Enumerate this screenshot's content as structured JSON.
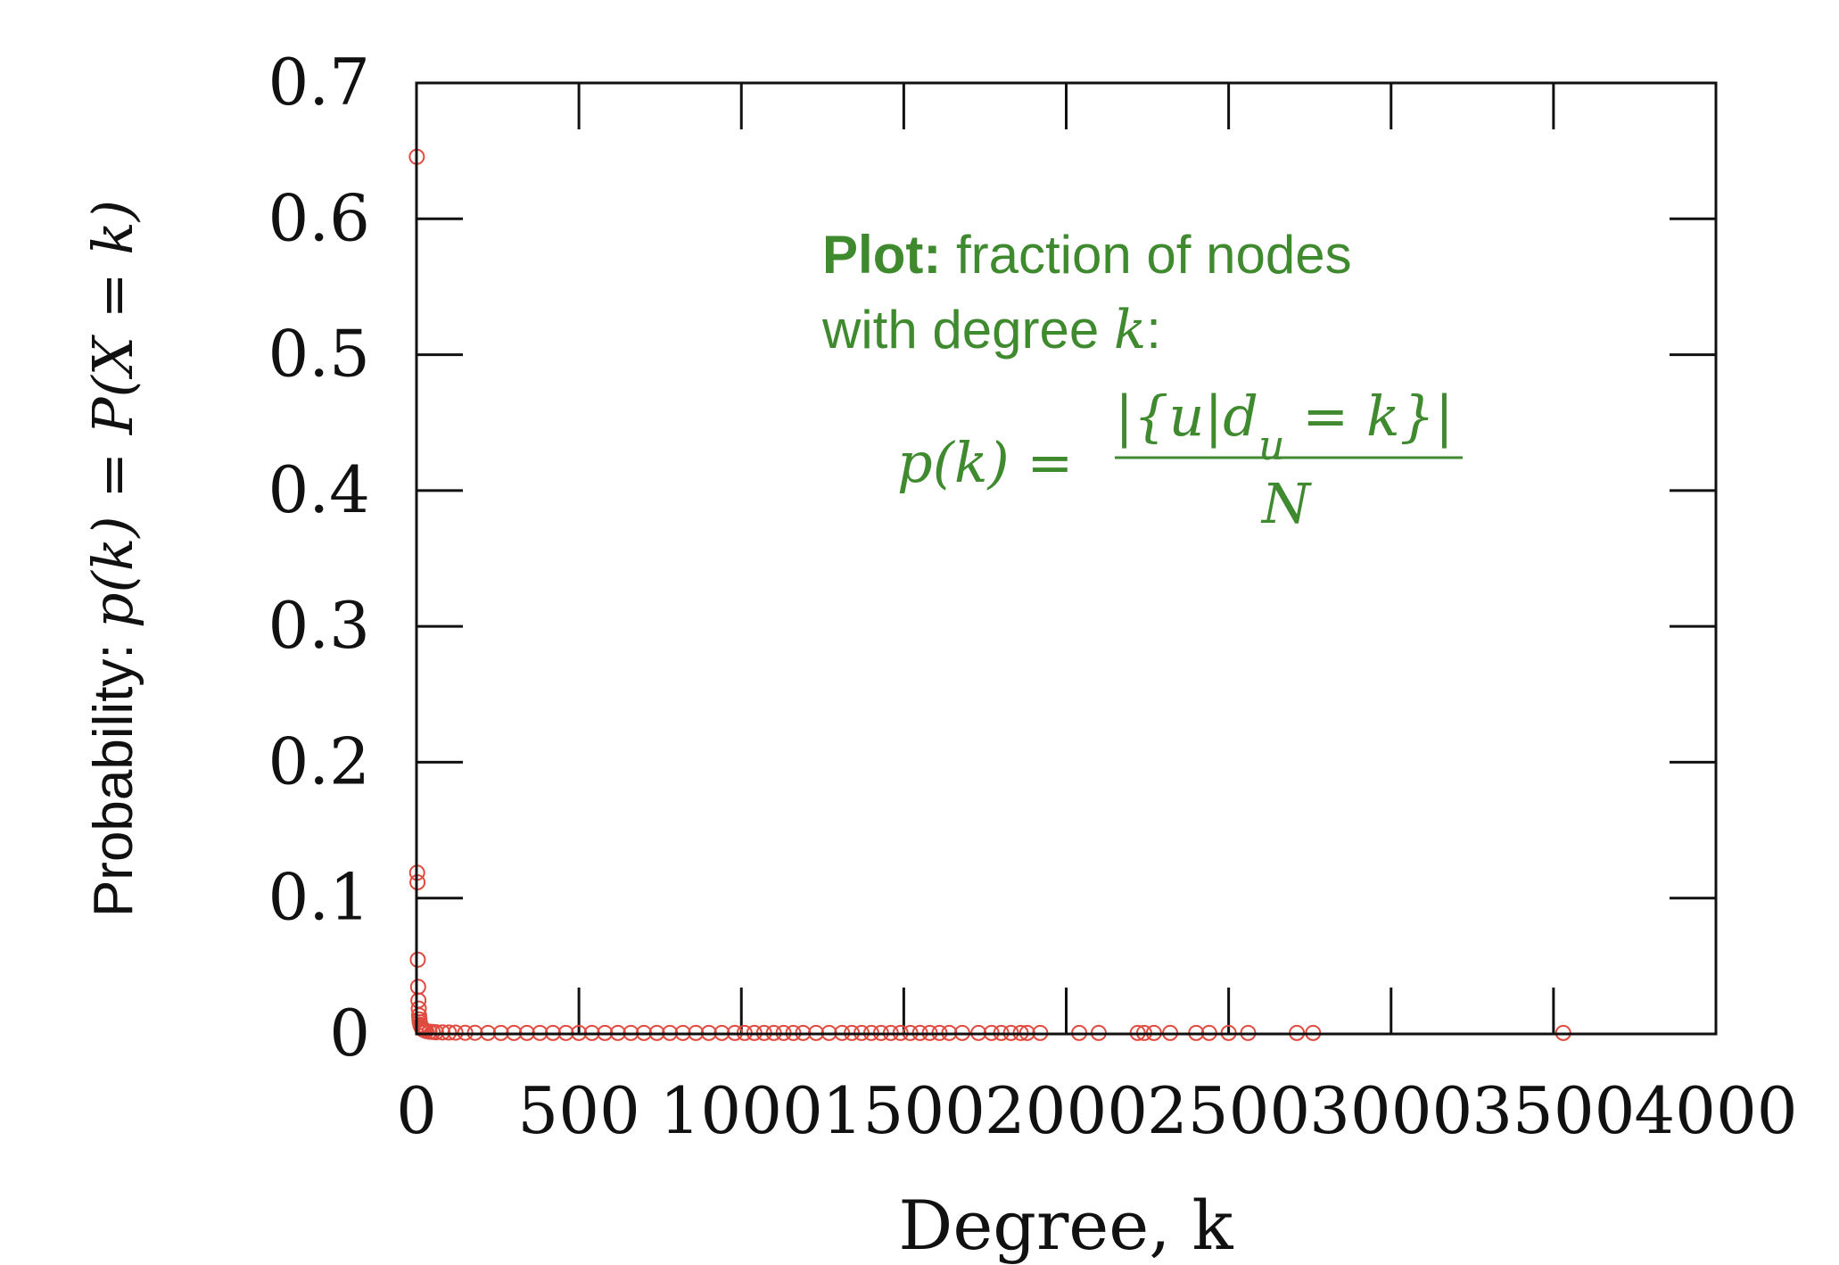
{
  "chart_data": {
    "type": "scatter",
    "title": "",
    "xlabel": "Degree, k",
    "ylabel": {
      "prefix": "Probability: ",
      "math": "p(k)  =  P(X = k)"
    },
    "xlim": [
      0,
      4000
    ],
    "ylim": [
      0,
      0.7
    ],
    "x_ticks": [
      0,
      500,
      1000,
      1500,
      2000,
      2500,
      3000,
      3500,
      4000
    ],
    "y_ticks": [
      0,
      0.1,
      0.2,
      0.3,
      0.4,
      0.5,
      0.6,
      0.7
    ],
    "x_tick_labels": [
      "0",
      "500",
      "1000",
      "1500",
      "2000",
      "2500",
      "3000",
      "3500",
      "4000"
    ],
    "y_tick_labels": [
      "0",
      "0.1",
      "0.2",
      "0.3",
      "0.4",
      "0.5",
      "0.6",
      "0.7"
    ],
    "grid": false,
    "marker": "open-circle",
    "colors": {
      "points": "#e04a3f",
      "annotation": "#3f8a2f",
      "axes": "#111111"
    },
    "series": [
      {
        "name": "",
        "points": [
          [
            1,
            0.645
          ],
          [
            2,
            0.118
          ],
          [
            3,
            0.111
          ],
          [
            4,
            0.054
          ],
          [
            5,
            0.034
          ],
          [
            6,
            0.024
          ],
          [
            7,
            0.018
          ],
          [
            8,
            0.013
          ],
          [
            9,
            0.01
          ],
          [
            10,
            0.008
          ],
          [
            12,
            0.006
          ],
          [
            14,
            0.005
          ],
          [
            16,
            0.004
          ],
          [
            18,
            0.003
          ],
          [
            20,
            0.0025
          ],
          [
            25,
            0.002
          ],
          [
            30,
            0.0015
          ],
          [
            40,
            0.001
          ],
          [
            50,
            0.0008
          ],
          [
            60,
            0.0006
          ],
          [
            80,
            0.0005
          ],
          [
            100,
            0.0004
          ],
          [
            120,
            0.0003
          ],
          [
            150,
            0.0002
          ],
          [
            180,
            0.0002
          ],
          [
            220,
            0.0001
          ],
          [
            260,
            0.0001
          ],
          [
            300,
            0.0001
          ],
          [
            340,
            0.0001
          ],
          [
            380,
            0.0001
          ],
          [
            420,
            0.0001
          ],
          [
            460,
            0.0001
          ],
          [
            500,
            0.0001
          ],
          [
            540,
            0.0001
          ],
          [
            580,
            0.0001
          ],
          [
            620,
            0.0001
          ],
          [
            660,
            0.0001
          ],
          [
            700,
            0.0001
          ],
          [
            740,
            0.0001
          ],
          [
            780,
            0.0001
          ],
          [
            820,
            0.0001
          ],
          [
            860,
            0.0001
          ],
          [
            900,
            0.0001
          ],
          [
            940,
            0.0001
          ],
          [
            980,
            0.0001
          ],
          [
            1010,
            0.0001
          ],
          [
            1040,
            0.0001
          ],
          [
            1070,
            0.0001
          ],
          [
            1100,
            0.0001
          ],
          [
            1130,
            0.0001
          ],
          [
            1160,
            0.0001
          ],
          [
            1190,
            0.0001
          ],
          [
            1230,
            0.0001
          ],
          [
            1270,
            0.0001
          ],
          [
            1310,
            0.0001
          ],
          [
            1340,
            0.0001
          ],
          [
            1370,
            0.0001
          ],
          [
            1400,
            0.0001
          ],
          [
            1430,
            0.0001
          ],
          [
            1460,
            0.0001
          ],
          [
            1490,
            0.0001
          ],
          [
            1520,
            0.0001
          ],
          [
            1550,
            0.0001
          ],
          [
            1580,
            0.0001
          ],
          [
            1610,
            0.0001
          ],
          [
            1640,
            0.0001
          ],
          [
            1680,
            0.0001
          ],
          [
            1730,
            0.0001
          ],
          [
            1770,
            0.0001
          ],
          [
            1800,
            0.0001
          ],
          [
            1830,
            0.0001
          ],
          [
            1860,
            0.0001
          ],
          [
            1880,
            0.0001
          ],
          [
            1920,
            0.0001
          ],
          [
            2040,
            0.0001
          ],
          [
            2100,
            0.0001
          ],
          [
            2220,
            0.0001
          ],
          [
            2240,
            0.0001
          ],
          [
            2270,
            0.0001
          ],
          [
            2320,
            0.0001
          ],
          [
            2400,
            0.0001
          ],
          [
            2440,
            0.0001
          ],
          [
            2500,
            0.0001
          ],
          [
            2560,
            0.0001
          ],
          [
            2710,
            0.0001
          ],
          [
            2760,
            0.0001
          ],
          [
            3530,
            0.0001
          ]
        ]
      }
    ],
    "annotation": {
      "bold": "Plot:",
      "line1": " fraction of nodes",
      "line2_text": "with degree ",
      "line2_var": "k",
      "line2_end": ":",
      "formula_lhs": "p(k) =",
      "formula_num": "|{u|d",
      "formula_num_sub": "u",
      "formula_num_end": " = k}|",
      "formula_den": "N"
    }
  }
}
